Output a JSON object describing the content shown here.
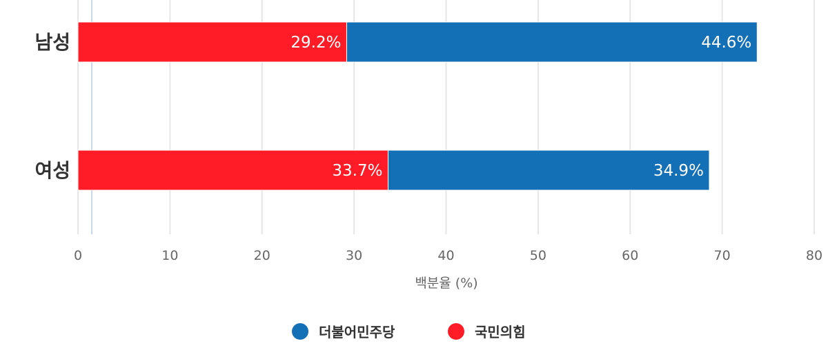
{
  "chart_data": {
    "type": "bar",
    "orientation": "horizontal",
    "stacked": true,
    "categories": [
      "남성",
      "여성"
    ],
    "series": [
      {
        "name": "국민의힘",
        "color": "#ff1c27",
        "values": [
          29.2,
          33.7
        ],
        "labels": [
          "29.2%",
          "33.7%"
        ]
      },
      {
        "name": "더불어민주당",
        "color": "#1470b6",
        "values": [
          44.6,
          34.9
        ],
        "labels": [
          "44.6%",
          "34.9%"
        ]
      }
    ],
    "xlabel": "백분율 (%)",
    "xlim": [
      0,
      80
    ],
    "xticks": [
      "0",
      "10",
      "20",
      "30",
      "40",
      "50",
      "60",
      "70",
      "80"
    ],
    "grid": true,
    "plot_line": {
      "value": 1.5,
      "color": "#ccd6eb"
    },
    "legend": {
      "placement": "bottom",
      "items": [
        "더불어민주당",
        "국민의힘"
      ]
    }
  }
}
